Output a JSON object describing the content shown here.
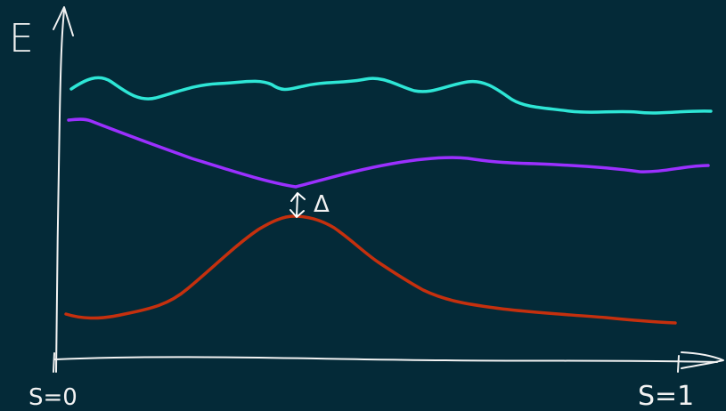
{
  "axes": {
    "y_label": "E",
    "x_start_label": "S=0",
    "x_end_label": "S=1",
    "color": "#f2f2f2"
  },
  "gap": {
    "label": "Δ",
    "color": "#ffffff"
  },
  "curves": [
    {
      "id": "top-energy-level",
      "color": "#2ee6d6"
    },
    {
      "id": "first-excited-level",
      "color": "#9b30ff"
    },
    {
      "id": "ground-level",
      "color": "#c5300e"
    }
  ]
}
